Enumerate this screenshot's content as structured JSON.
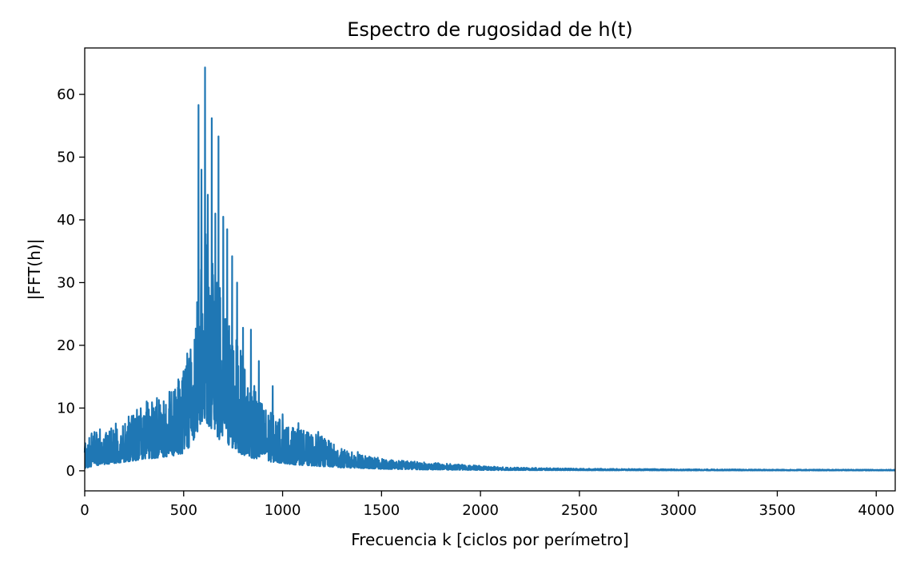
{
  "chart_data": {
    "type": "line",
    "title": "Espectro de rugosidad de h(t)",
    "xlabel": "Frecuencia k [ciclos por perímetro]",
    "ylabel": "|FFT(h)|",
    "xlim": [
      0,
      4096
    ],
    "ylim": [
      -3.2,
      67.4
    ],
    "xticks": [
      0,
      500,
      1000,
      1500,
      2000,
      2500,
      3000,
      3500,
      4000
    ],
    "yticks": [
      0,
      10,
      20,
      30,
      40,
      50,
      60
    ],
    "grid": false,
    "legend": "none",
    "series_color": "#1f77b4",
    "series": [
      {
        "x": [
          0,
          50,
          100,
          150,
          200,
          250,
          300,
          350,
          400,
          450,
          500,
          550,
          580,
          600,
          620,
          650,
          680,
          700,
          750,
          800,
          850,
          900,
          950,
          1000,
          1050,
          1100,
          1150,
          1200,
          1250,
          1300,
          1400,
          1500,
          1600,
          1700,
          1800,
          1900,
          2000,
          2100,
          2200,
          2500,
          3000,
          3500,
          4096
        ],
        "lower": [
          0.4,
          0.8,
          1.0,
          1.2,
          1.4,
          1.6,
          1.8,
          2.0,
          2.2,
          2.4,
          2.8,
          4.5,
          7.0,
          8.0,
          7.5,
          6.0,
          5.0,
          4.5,
          3.5,
          2.5,
          2.0,
          1.6,
          1.4,
          1.2,
          1.0,
          0.9,
          0.8,
          0.7,
          0.6,
          0.5,
          0.4,
          0.3,
          0.25,
          0.2,
          0.18,
          0.15,
          0.12,
          0.1,
          0.1,
          0.08,
          0.06,
          0.05,
          0.05
        ],
        "upper": [
          5.0,
          6.5,
          7.0,
          7.5,
          8.5,
          10.0,
          11.0,
          11.5,
          12.0,
          13.5,
          17.0,
          22.0,
          32.0,
          40.0,
          36.0,
          33.0,
          30.0,
          28.0,
          23.0,
          18.0,
          14.0,
          11.0,
          9.0,
          8.0,
          7.0,
          6.5,
          6.0,
          5.5,
          4.5,
          3.5,
          2.5,
          2.0,
          1.7,
          1.4,
          1.2,
          1.0,
          0.8,
          0.6,
          0.5,
          0.35,
          0.25,
          0.2,
          0.18
        ]
      }
    ],
    "peaks": [
      {
        "x": 450,
        "y": 12.6
      },
      {
        "x": 495,
        "y": 14.8
      },
      {
        "x": 518,
        "y": 18.7
      },
      {
        "x": 555,
        "y": 20.9
      },
      {
        "x": 575,
        "y": 58.3
      },
      {
        "x": 590,
        "y": 48.0
      },
      {
        "x": 608,
        "y": 64.3
      },
      {
        "x": 622,
        "y": 44.0
      },
      {
        "x": 642,
        "y": 56.2
      },
      {
        "x": 660,
        "y": 41.0
      },
      {
        "x": 676,
        "y": 53.3
      },
      {
        "x": 700,
        "y": 40.5
      },
      {
        "x": 720,
        "y": 38.5
      },
      {
        "x": 745,
        "y": 34.2
      },
      {
        "x": 770,
        "y": 30.0
      },
      {
        "x": 800,
        "y": 22.8
      },
      {
        "x": 840,
        "y": 22.5
      },
      {
        "x": 880,
        "y": 17.5
      },
      {
        "x": 950,
        "y": 13.5
      },
      {
        "x": 1000,
        "y": 9.0
      },
      {
        "x": 1080,
        "y": 7.6
      },
      {
        "x": 1180,
        "y": 6.2
      },
      {
        "x": 1380,
        "y": 3.0
      }
    ]
  }
}
